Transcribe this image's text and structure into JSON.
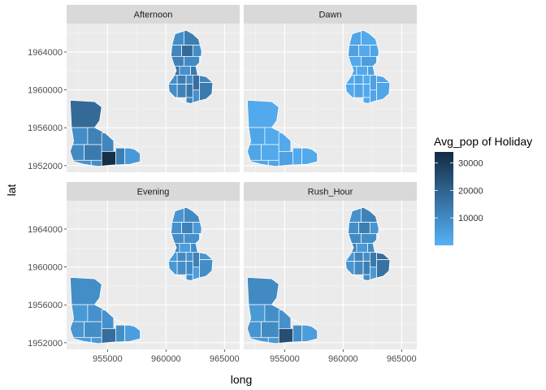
{
  "chart_data": {
    "type": "choropleth-facet",
    "xlabel": "long",
    "ylabel": "lat",
    "x_ticks": [
      955000,
      960000,
      965000
    ],
    "y_ticks": [
      1952000,
      1956000,
      1960000,
      1964000
    ],
    "xlim": [
      951500,
      966300
    ],
    "ylim": [
      1951300,
      1967000
    ],
    "legend": {
      "title": "Avg_pop of Holiday",
      "breaks": [
        10000,
        20000,
        30000
      ],
      "range": [
        0,
        34000
      ],
      "colors": [
        "#56B1F7",
        "#132B43"
      ],
      "placement": "right"
    },
    "facets": [
      {
        "name": "Afternoon",
        "east_region": [
          9000,
          13000,
          11000,
          18000,
          9000,
          12000,
          10000,
          16000,
          8000,
          14000,
          11000,
          9000,
          13000,
          10000,
          17000,
          9000,
          12000,
          15000,
          8000,
          11000,
          14000
        ],
        "west_region": [
          18000,
          9000,
          12000,
          10000,
          14000,
          11000,
          8000,
          33000,
          13000,
          9000,
          6000
        ]
      },
      {
        "name": "Dawn",
        "east_region": [
          3000,
          2000,
          4000,
          2000,
          3000,
          2000,
          5000,
          3000,
          2000,
          4000,
          3000,
          2000,
          3000,
          2000,
          4000,
          2000,
          3000,
          2000,
          3000,
          2000,
          3000
        ],
        "west_region": [
          2000,
          3000,
          2000,
          3000,
          2000,
          2000,
          3000,
          4000,
          2000,
          3000,
          2000
        ]
      },
      {
        "name": "Evening",
        "east_region": [
          7000,
          10000,
          8000,
          12000,
          6000,
          9000,
          8000,
          11000,
          5000,
          9000,
          7000,
          6000,
          10000,
          8000,
          12000,
          6000,
          9000,
          10000,
          5000,
          8000,
          9000
        ],
        "west_region": [
          9000,
          6000,
          8000,
          7000,
          9000,
          8000,
          6000,
          17000,
          9000,
          6000,
          5000
        ]
      },
      {
        "name": "Rush_Hour",
        "east_region": [
          8000,
          12000,
          9000,
          13000,
          7000,
          10000,
          9000,
          12000,
          6000,
          10000,
          17000,
          7000,
          11000,
          9000,
          14000,
          7000,
          10000,
          13000,
          6000,
          9000,
          16000
        ],
        "west_region": [
          10000,
          6000,
          9000,
          7000,
          10000,
          8000,
          6000,
          25000,
          9000,
          6000,
          5000
        ]
      }
    ]
  }
}
